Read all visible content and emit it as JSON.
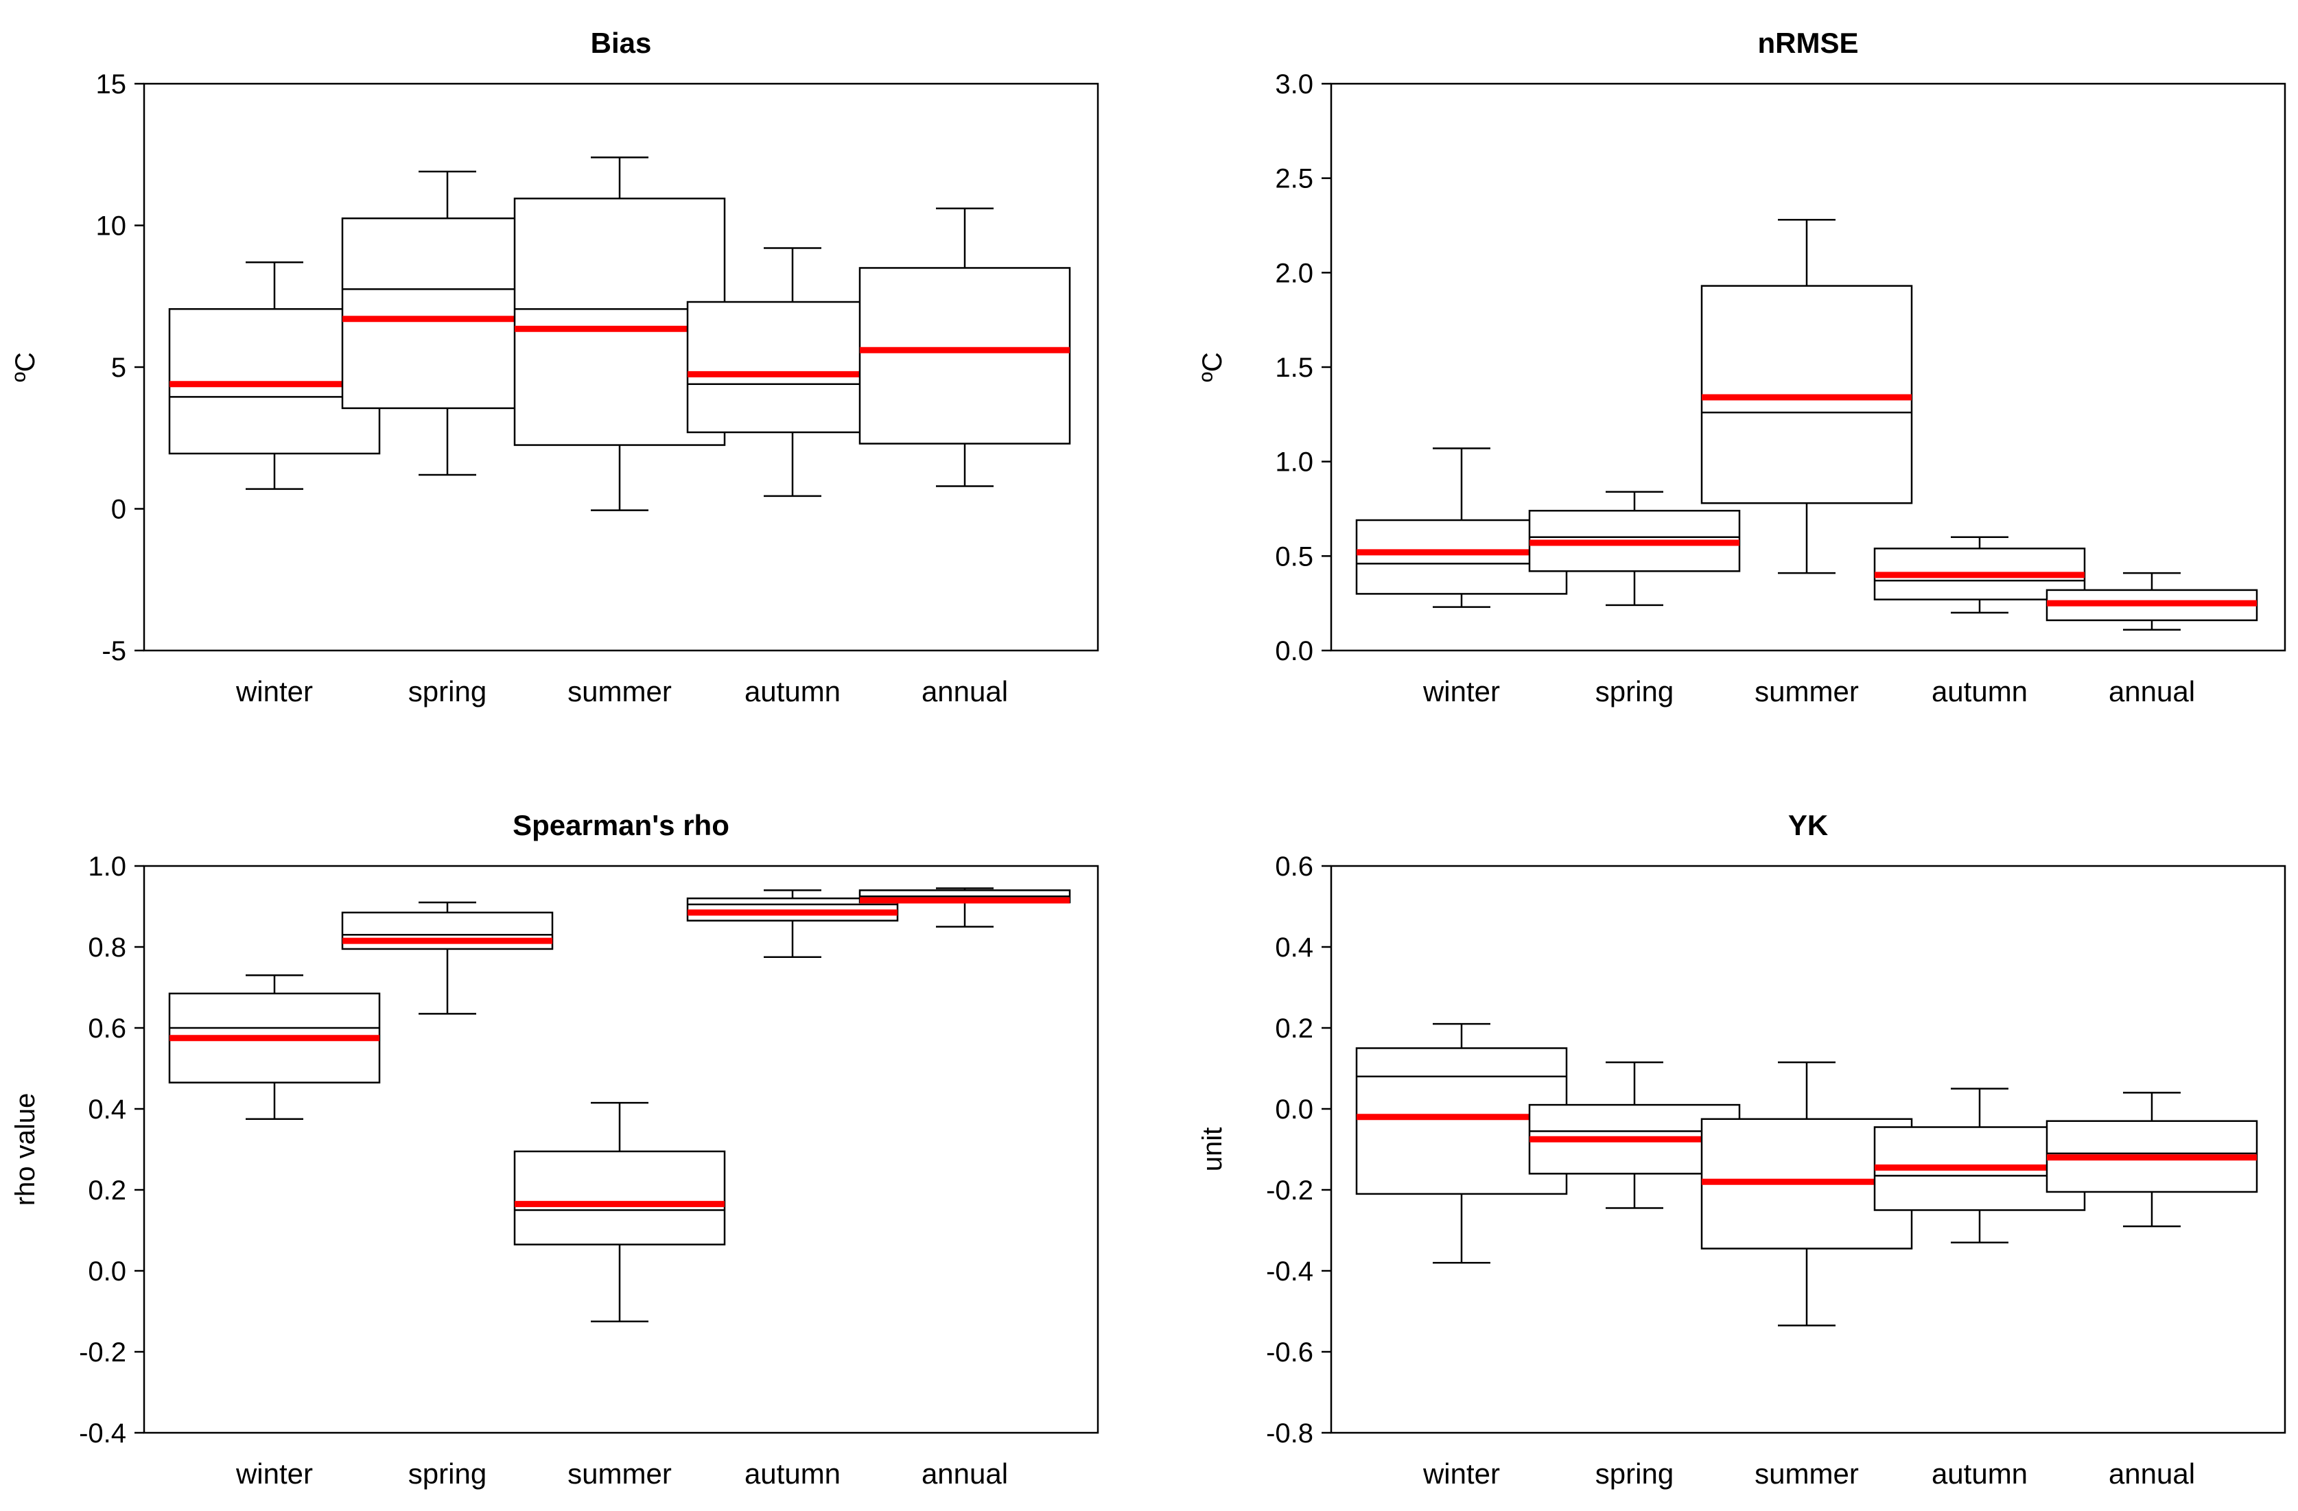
{
  "colors": {
    "mean_line": "#ff0000",
    "box_edge": "#000000",
    "background": "#ffffff"
  },
  "chart_data": [
    {
      "type": "boxplot",
      "title": "Bias",
      "ylabel": "ºC",
      "xlabel": "",
      "ylim": [
        -5,
        15
      ],
      "yticks": [
        -5,
        0,
        5,
        10,
        15
      ],
      "ytick_labels": [
        "-5",
        "0",
        "5",
        "10",
        "15"
      ],
      "categories": [
        "winter",
        "spring",
        "summer",
        "autumn",
        "annual"
      ],
      "boxes": [
        {
          "whisker_low": 0.7,
          "q1": 1.95,
          "median": 3.95,
          "q3": 7.05,
          "whisker_high": 8.7,
          "mean": 4.4
        },
        {
          "whisker_low": 1.2,
          "q1": 3.55,
          "median": 7.75,
          "q3": 10.25,
          "whisker_high": 11.9,
          "mean": 6.7
        },
        {
          "whisker_low": -0.05,
          "q1": 2.25,
          "median": 7.05,
          "q3": 10.95,
          "whisker_high": 12.4,
          "mean": 6.35
        },
        {
          "whisker_low": 0.45,
          "q1": 2.7,
          "median": 4.4,
          "q3": 7.3,
          "whisker_high": 9.2,
          "mean": 4.75
        },
        {
          "whisker_low": 0.8,
          "q1": 2.3,
          "median": 5.6,
          "q3": 8.5,
          "whisker_high": 10.6,
          "mean": 5.6
        }
      ]
    },
    {
      "type": "boxplot",
      "title": "nRMSE",
      "ylabel": "ºC",
      "xlabel": "",
      "ylim": [
        0.0,
        3.0
      ],
      "yticks": [
        0,
        0.5,
        1,
        1.5,
        2,
        2.5,
        3
      ],
      "ytick_labels": [
        "0.0",
        "0.5",
        "1.0",
        "1.5",
        "2.0",
        "2.5",
        "3.0"
      ],
      "categories": [
        "winter",
        "spring",
        "summer",
        "autumn",
        "annual"
      ],
      "boxes": [
        {
          "whisker_low": 0.23,
          "q1": 0.3,
          "median": 0.46,
          "q3": 0.69,
          "whisker_high": 1.07,
          "mean": 0.52
        },
        {
          "whisker_low": 0.24,
          "q1": 0.42,
          "median": 0.6,
          "q3": 0.74,
          "whisker_high": 0.84,
          "mean": 0.57
        },
        {
          "whisker_low": 0.41,
          "q1": 0.78,
          "median": 1.26,
          "q3": 1.93,
          "whisker_high": 2.28,
          "mean": 1.34
        },
        {
          "whisker_low": 0.2,
          "q1": 0.27,
          "median": 0.37,
          "q3": 0.54,
          "whisker_high": 0.6,
          "mean": 0.4
        },
        {
          "whisker_low": 0.11,
          "q1": 0.16,
          "median": 0.24,
          "q3": 0.32,
          "whisker_high": 0.41,
          "mean": 0.25
        }
      ]
    },
    {
      "type": "boxplot",
      "title": "Spearman's rho",
      "ylabel": "rho value",
      "xlabel": "",
      "ylim": [
        -0.4,
        1.0
      ],
      "yticks": [
        -0.4,
        -0.2,
        0,
        0.2,
        0.4,
        0.6,
        0.8,
        1
      ],
      "ytick_labels": [
        "-0.4",
        "-0.2",
        "0.0",
        "0.2",
        "0.4",
        "0.6",
        "0.8",
        "1.0"
      ],
      "categories": [
        "winter",
        "spring",
        "summer",
        "autumn",
        "annual"
      ],
      "boxes": [
        {
          "whisker_low": 0.375,
          "q1": 0.465,
          "median": 0.6,
          "q3": 0.685,
          "whisker_high": 0.73,
          "mean": 0.575
        },
        {
          "whisker_low": 0.635,
          "q1": 0.795,
          "median": 0.83,
          "q3": 0.885,
          "whisker_high": 0.91,
          "mean": 0.815
        },
        {
          "whisker_low": -0.125,
          "q1": 0.065,
          "median": 0.15,
          "q3": 0.295,
          "whisker_high": 0.415,
          "mean": 0.165
        },
        {
          "whisker_low": 0.775,
          "q1": 0.865,
          "median": 0.905,
          "q3": 0.92,
          "whisker_high": 0.94,
          "mean": 0.885
        },
        {
          "whisker_low": 0.85,
          "q1": 0.91,
          "median": 0.925,
          "q3": 0.94,
          "whisker_high": 0.945,
          "mean": 0.915
        }
      ]
    },
    {
      "type": "boxplot",
      "title": "YK",
      "ylabel": "unit",
      "xlabel": "",
      "ylim": [
        -0.8,
        0.6
      ],
      "yticks": [
        -0.8,
        -0.6,
        -0.4,
        -0.2,
        0,
        0.2,
        0.4,
        0.6
      ],
      "ytick_labels": [
        "-0.8",
        "-0.6",
        "-0.4",
        "-0.2",
        "0.0",
        "0.2",
        "0.4",
        "0.6"
      ],
      "categories": [
        "winter",
        "spring",
        "summer",
        "autumn",
        "annual"
      ],
      "boxes": [
        {
          "whisker_low": -0.38,
          "q1": -0.21,
          "median": 0.08,
          "q3": 0.15,
          "whisker_high": 0.21,
          "mean": -0.02
        },
        {
          "whisker_low": -0.245,
          "q1": -0.16,
          "median": -0.055,
          "q3": 0.01,
          "whisker_high": 0.115,
          "mean": -0.075
        },
        {
          "whisker_low": -0.535,
          "q1": -0.345,
          "median": -0.18,
          "q3": -0.025,
          "whisker_high": 0.115,
          "mean": -0.18
        },
        {
          "whisker_low": -0.33,
          "q1": -0.25,
          "median": -0.165,
          "q3": -0.045,
          "whisker_high": 0.05,
          "mean": -0.145
        },
        {
          "whisker_low": -0.29,
          "q1": -0.205,
          "median": -0.11,
          "q3": -0.03,
          "whisker_high": 0.04,
          "mean": -0.12
        }
      ]
    }
  ]
}
